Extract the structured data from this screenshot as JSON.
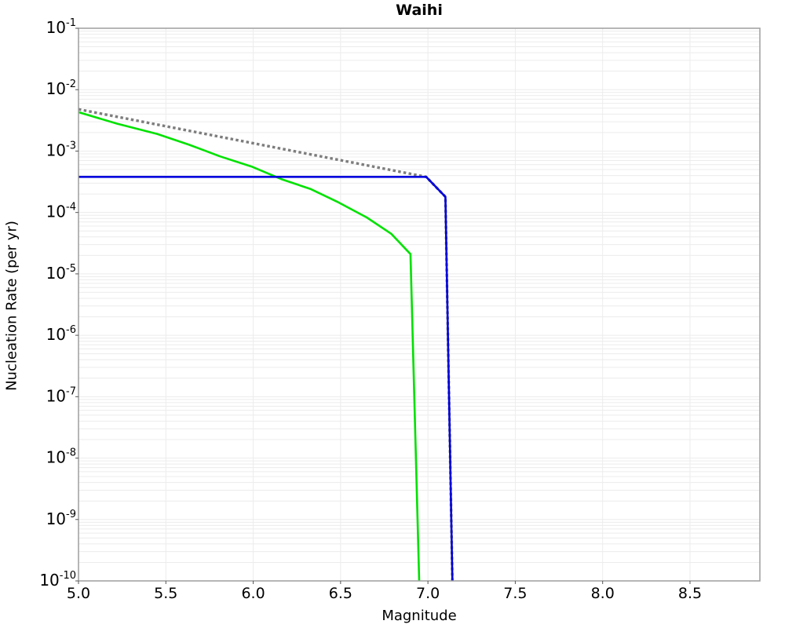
{
  "chart_data": {
    "type": "line",
    "title": "Waihi",
    "xlabel": "Magnitude",
    "ylabel": "Nucleation Rate (per yr)",
    "xlim": [
      5.0,
      8.9
    ],
    "ylim": [
      1e-10,
      0.1
    ],
    "x_ticks": [
      5.0,
      5.5,
      6.0,
      6.5,
      7.0,
      7.5,
      8.0,
      8.5
    ],
    "y_tick_exponents": [
      -1,
      -2,
      -3,
      -4,
      -5,
      -6,
      -7,
      -8,
      -9,
      -10
    ],
    "grid": {
      "show": true,
      "color": "#ececec",
      "x_step": 0.5,
      "y_log_minor": true
    },
    "frame_color": "#9e9e9e",
    "tick_color": "#555555",
    "background": "#ffffff",
    "legend": {
      "show": false
    },
    "series": [
      {
        "name": "green-curve",
        "color": "#00e100",
        "style": "solid",
        "width": 2.6,
        "points": [
          [
            5.0,
            0.0043
          ],
          [
            5.22,
            0.0028
          ],
          [
            5.45,
            0.0019
          ],
          [
            5.63,
            0.00128
          ],
          [
            5.81,
            0.00082
          ],
          [
            5.99,
            0.00056
          ],
          [
            6.16,
            0.00035
          ],
          [
            6.33,
            0.00024
          ],
          [
            6.48,
            0.00015
          ],
          [
            6.65,
            8.3e-05
          ],
          [
            6.79,
            4.5e-05
          ],
          [
            6.9,
            2.1e-05
          ],
          [
            6.95,
            1e-10
          ]
        ]
      },
      {
        "name": "gray-dotted",
        "color": "#7d7d7d",
        "style": "dotted",
        "width": 3.4,
        "points": [
          [
            5.0,
            0.0048
          ],
          [
            6.99,
            0.00038
          ],
          [
            7.1,
            0.00018
          ],
          [
            7.14,
            1e-10
          ]
        ]
      },
      {
        "name": "blue-line",
        "color": "#0000dd",
        "style": "solid",
        "width": 2.6,
        "points": [
          [
            5.0,
            0.00038
          ],
          [
            6.99,
            0.00038
          ],
          [
            7.1,
            0.00018
          ],
          [
            7.14,
            1e-10
          ]
        ]
      }
    ]
  }
}
